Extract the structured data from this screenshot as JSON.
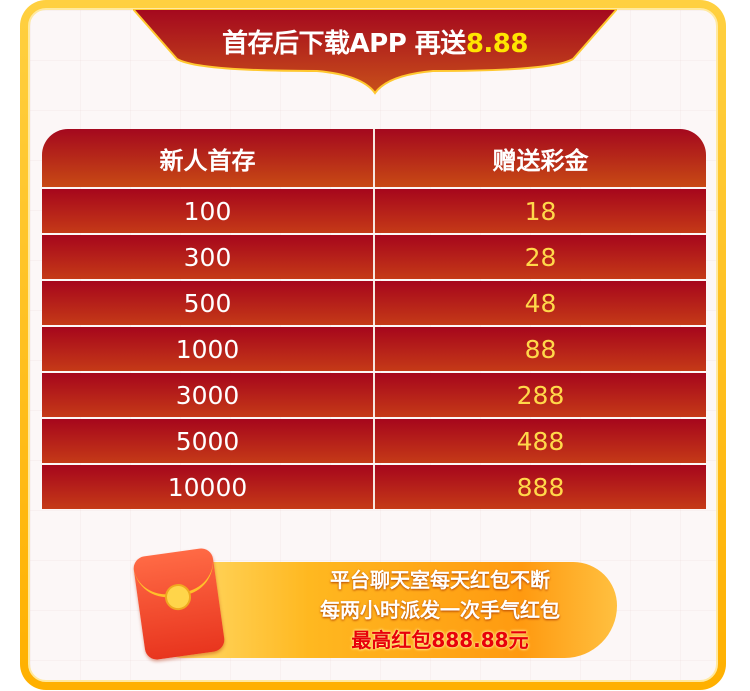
{
  "banner": {
    "title": "首存后下载APP 再送",
    "highlight": "8.88"
  },
  "table": {
    "headers": [
      "新人首存",
      "赠送彩金"
    ],
    "rows": [
      [
        "100",
        "18"
      ],
      [
        "300",
        "28"
      ],
      [
        "500",
        "48"
      ],
      [
        "1000",
        "88"
      ],
      [
        "3000",
        "288"
      ],
      [
        "5000",
        "488"
      ],
      [
        "10000",
        "888"
      ]
    ]
  },
  "promo": {
    "line1": "平台聊天室每天红包不断",
    "line2": "每两小时派发一次手气红包",
    "line3": "最高红包888.88元",
    "icon": "red-envelope-icon"
  },
  "colors": {
    "frame": "#ffc020",
    "header": "#a4081e",
    "highlight": "#ffe600",
    "value": "#ffd84a"
  }
}
